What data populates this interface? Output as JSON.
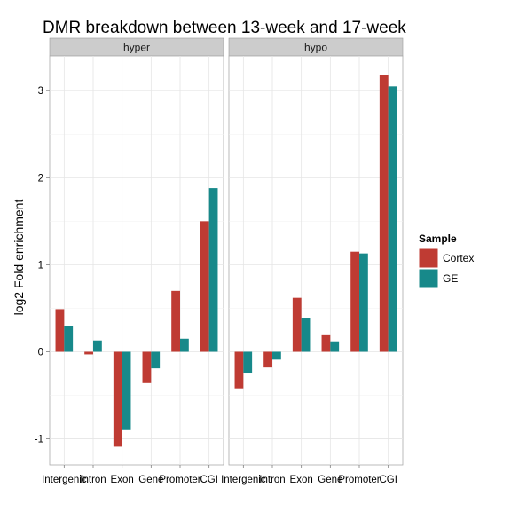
{
  "chart_data": {
    "type": "bar",
    "title": "DMR breakdown between 13-week and 17-week",
    "xlabel": "",
    "ylabel": "log2 Fold enrichment",
    "ylim": [
      -1.3,
      3.4
    ],
    "yticks": [
      -1,
      0,
      1,
      2,
      3
    ],
    "grid": true,
    "legend": {
      "title": "Sample",
      "placement": "right"
    },
    "categories": [
      "Intergenic",
      "Intron",
      "Exon",
      "Gene",
      "Promoter",
      "CGI"
    ],
    "tick_labels": [
      "Intergenic",
      "Intron",
      "Exon",
      "Gene",
      "Promoter",
      "CGI"
    ],
    "series": [
      {
        "name": "Cortex",
        "color": "#bf3b33"
      },
      {
        "name": "GE",
        "color": "#17898a"
      }
    ],
    "panels": [
      {
        "label": "hyper",
        "values": {
          "Cortex": [
            0.49,
            -0.03,
            -1.09,
            -0.36,
            0.7,
            1.5
          ],
          "GE": [
            0.3,
            0.13,
            -0.9,
            -0.19,
            0.15,
            1.88
          ]
        }
      },
      {
        "label": "hypo",
        "values": {
          "Cortex": [
            -0.42,
            -0.18,
            0.62,
            0.19,
            1.15,
            3.18
          ],
          "GE": [
            -0.25,
            -0.09,
            0.39,
            0.12,
            1.13,
            3.05
          ]
        }
      }
    ]
  }
}
